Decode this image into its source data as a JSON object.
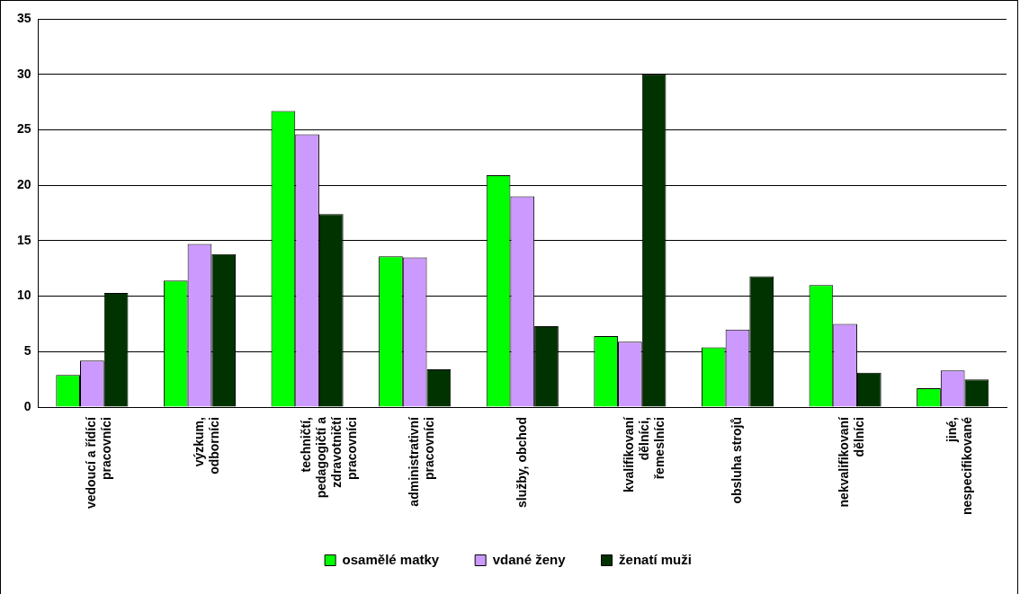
{
  "chart_data": {
    "type": "bar",
    "categories": [
      "vedoucí a řídící\npracovníci",
      "výzkum,\nodborníci",
      "techničtí,\npedagogičtí a\nzdravotničtí\npracovníci",
      "administrativní\npracovníci",
      "služby, obchod",
      "kvalifikovaní\ndělníci,\nřemeslníci",
      "obsluha strojů",
      "nekvalifikovaní\ndělníci",
      "jiné,\nnespecifikované"
    ],
    "series": [
      {
        "name": "osamělé matky",
        "color": "#00ff00",
        "values": [
          2.9,
          11.4,
          26.7,
          13.6,
          20.9,
          6.4,
          5.4,
          11.0,
          1.7
        ]
      },
      {
        "name": "vdané ženy",
        "color": "#cc99ff",
        "values": [
          4.2,
          14.7,
          24.6,
          13.5,
          19.0,
          5.9,
          7.0,
          7.5,
          3.3
        ]
      },
      {
        "name": "ženatí muži",
        "color": "#003300",
        "values": [
          10.3,
          13.8,
          17.4,
          3.4,
          7.3,
          30.0,
          11.8,
          3.1,
          2.5
        ]
      }
    ],
    "ylim": [
      0,
      35
    ],
    "yticks": [
      0,
      5,
      10,
      15,
      20,
      25,
      30,
      35
    ],
    "grid": "y",
    "legend": "bottom"
  }
}
